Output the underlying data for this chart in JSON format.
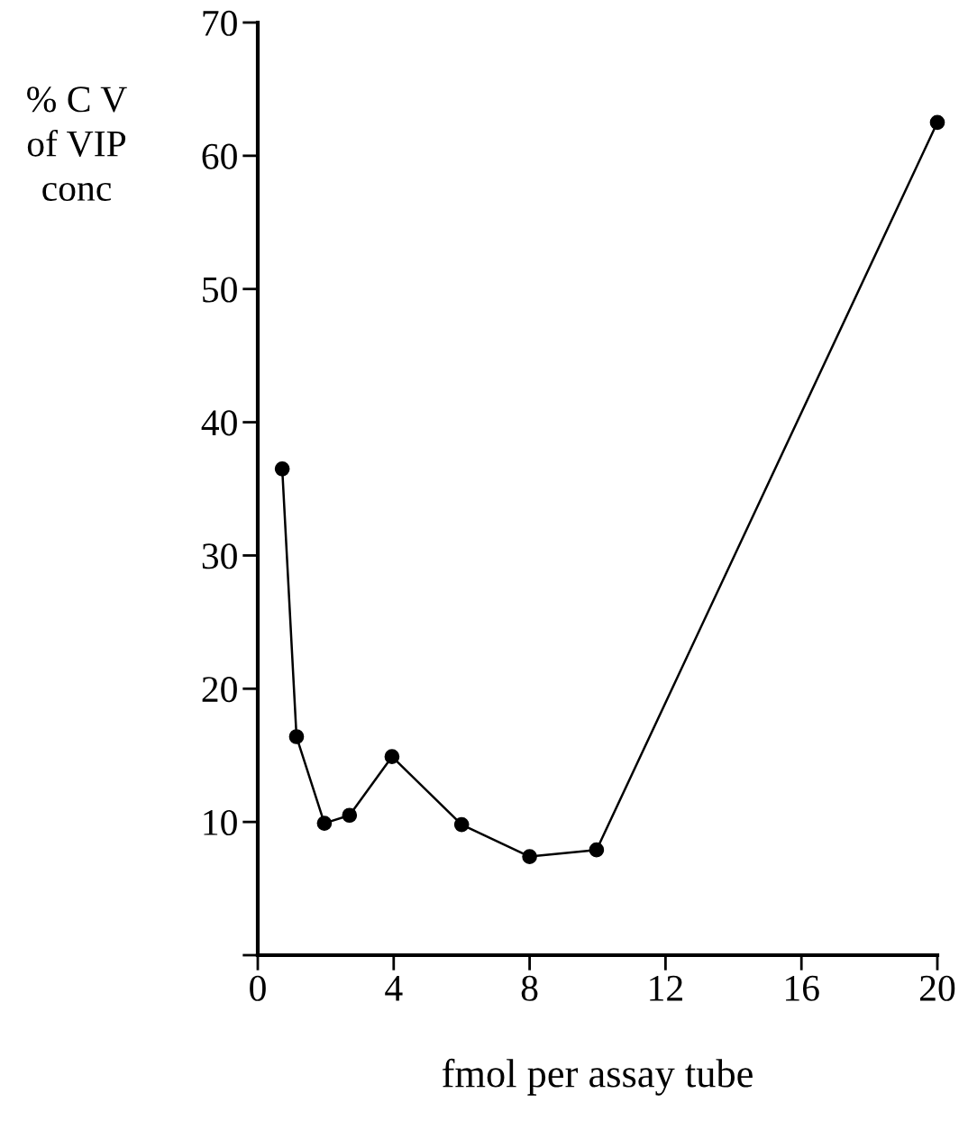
{
  "chart_data": {
    "type": "line",
    "xlabel": "fmol per assay tube",
    "ylabel": "% C V\nof VIP\nconc",
    "x": [
      0.72,
      1.14,
      1.96,
      2.7,
      3.95,
      6.0,
      8.0,
      9.97,
      20.0
    ],
    "series": [
      {
        "color": "#000000",
        "values": [
          36.5,
          16.4,
          9.9,
          10.5,
          14.9,
          9.8,
          7.4,
          7.9,
          62.5
        ]
      }
    ],
    "marker": "circle",
    "line_style": "solid",
    "grid": false,
    "legend": false,
    "xlim": [
      0,
      20
    ],
    "xticks": [
      0,
      4,
      8,
      12,
      16,
      20
    ],
    "ylim": [
      0,
      70
    ],
    "yticks": [
      {
        "value": 0,
        "label": null
      },
      10,
      20,
      30,
      40,
      50,
      60,
      70
    ]
  }
}
